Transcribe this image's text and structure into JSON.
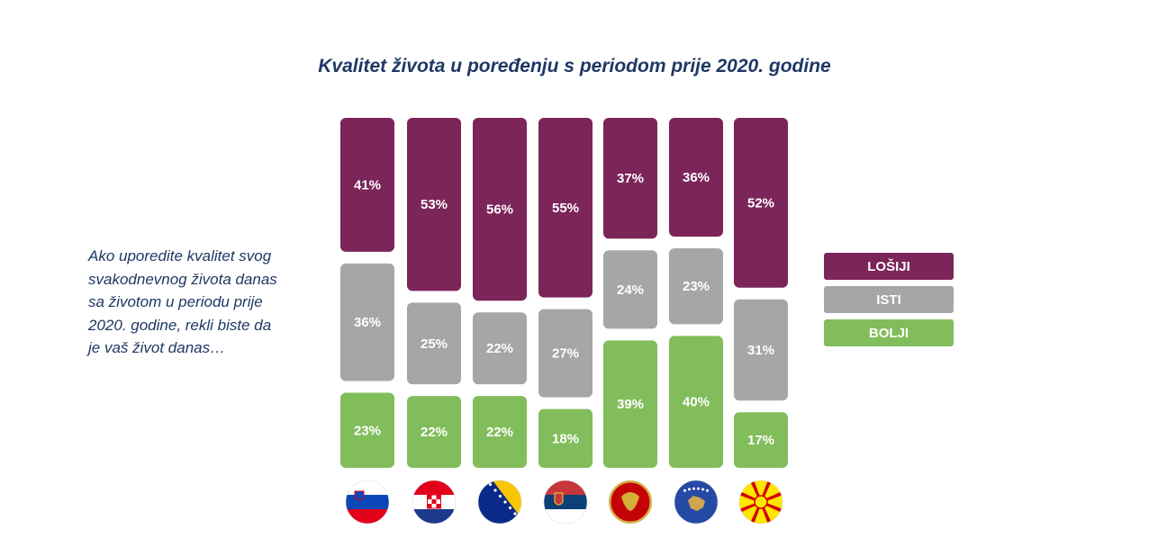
{
  "chart_data": {
    "type": "bar",
    "stacked": true,
    "normalized": true,
    "title": "Kvalitet života u poređenju s periodom prije 2020. godine",
    "question": "Ako uporedite kvalitet svog svakodnevnog života danas sa životom u periodu prije 2020. godine, rekli biste da je vaš život danas…",
    "categories": [
      "Slovenia",
      "Croatia",
      "Bosnia and Herzegovina",
      "Serbia",
      "Montenegro",
      "Kosovo",
      "North Macedonia"
    ],
    "category_display": "flag icons",
    "series": [
      {
        "name": "LOŠIJI",
        "color": "#7b2559",
        "values": [
          41,
          53,
          56,
          55,
          37,
          36,
          52
        ]
      },
      {
        "name": "ISTI",
        "color": "#a6a6a6",
        "values": [
          36,
          25,
          22,
          27,
          24,
          23,
          31
        ]
      },
      {
        "name": "BOLJI",
        "color": "#82bd5c",
        "values": [
          23,
          22,
          22,
          18,
          39,
          40,
          17
        ]
      }
    ],
    "value_suffix": "%",
    "legend_position": "right",
    "grid": false,
    "axes_visible": false
  }
}
